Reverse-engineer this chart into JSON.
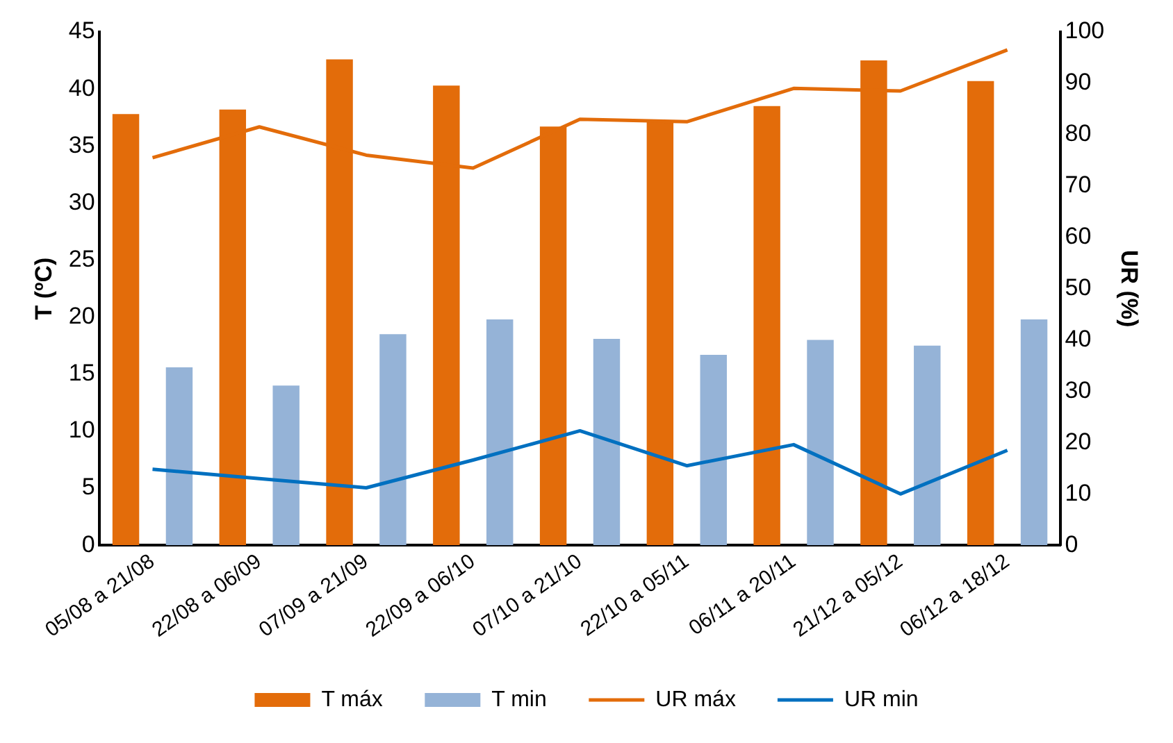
{
  "chart_data": {
    "type": "bar",
    "categories": [
      "05/08 a 21/08",
      "22/08 a 06/09",
      "07/09 a 21/09",
      "22/09 a 06/10",
      "07/10 a 21/10",
      "22/10 a 05/11",
      "06/11 a 20/11",
      "21/12 a 05/12",
      "06/12 a 18/12"
    ],
    "series": [
      {
        "name": "T máx",
        "color": "#e36c0a",
        "values": [
          37.8,
          38.2,
          42.6,
          40.3,
          36.7,
          37.2,
          38.5,
          42.5,
          40.7
        ]
      },
      {
        "name": "T min",
        "color": "#95b3d7",
        "values": [
          15.6,
          14.0,
          18.5,
          19.8,
          18.1,
          16.7,
          18.0,
          17.5,
          19.8
        ]
      },
      {
        "name": "UR máx",
        "type": "line",
        "axis": "y2",
        "color": "#e36c0a",
        "values": [
          75.5,
          81.5,
          76,
          73.5,
          83,
          82.5,
          89,
          88.5,
          96.5
        ]
      },
      {
        "name": "UR min",
        "type": "line",
        "axis": "y2",
        "color": "#0070c0",
        "values": [
          14.8,
          13,
          11.2,
          16.6,
          22.3,
          15.5,
          19.6,
          10,
          18.5
        ]
      }
    ],
    "ylabel": "T (ºC)",
    "y2label": "UR (%)",
    "ylim": [
      0,
      45
    ],
    "yticks": [
      0,
      5,
      10,
      15,
      20,
      25,
      30,
      35,
      40,
      45
    ],
    "y2lim": [
      0,
      100
    ],
    "y2ticks": [
      0,
      10,
      20,
      30,
      40,
      50,
      60,
      70,
      80,
      90,
      100
    ],
    "grid": false,
    "legend": "bottom",
    "marker": "none",
    "line_style": "solid"
  }
}
